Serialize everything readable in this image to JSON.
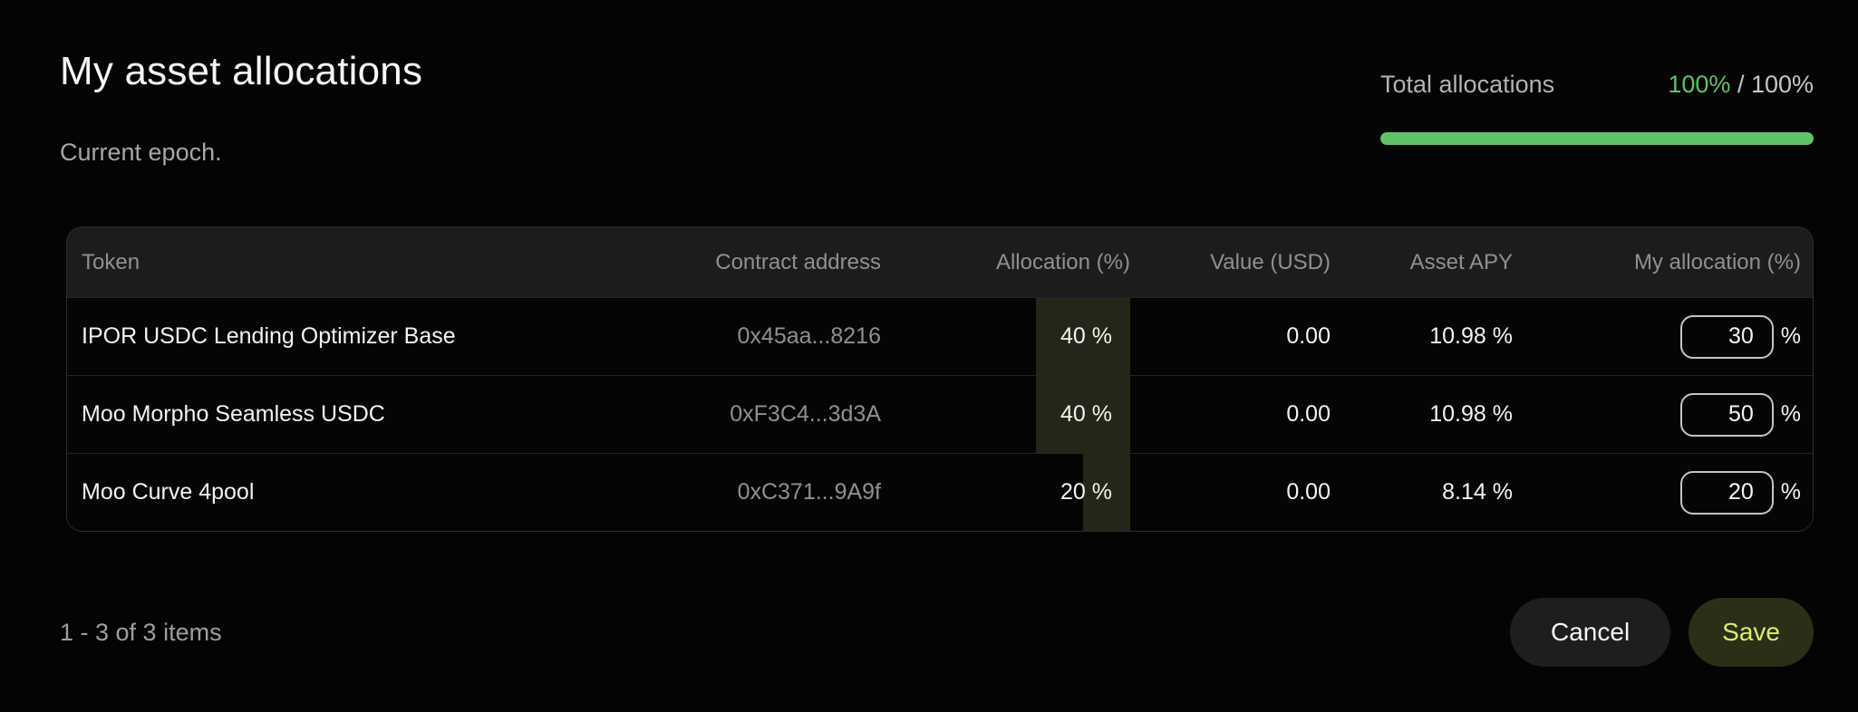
{
  "page": {
    "title": "My asset allocations",
    "subtitle": "Current epoch."
  },
  "totals": {
    "label": "Total allocations",
    "current": "100%",
    "rest": "/ 100%",
    "progress_percent": 100
  },
  "table": {
    "columns": {
      "token": "Token",
      "contract": "Contract address",
      "allocation": "Allocation (%)",
      "value": "Value (USD)",
      "apy": "Asset APY",
      "my_allocation": "My allocation (%)"
    },
    "rows": [
      {
        "token": "IPOR USDC Lending Optimizer Base",
        "contract": "0x45aa...8216",
        "allocation": "40 %",
        "allocation_pct": 40,
        "value": "0.00",
        "apy": "10.98 %",
        "my_allocation": "30",
        "unit": "%"
      },
      {
        "token": "Moo Morpho Seamless USDC",
        "contract": "0xF3C4...3d3A",
        "allocation": "40 %",
        "allocation_pct": 40,
        "value": "0.00",
        "apy": "10.98 %",
        "my_allocation": "50",
        "unit": "%"
      },
      {
        "token": "Moo Curve 4pool",
        "contract": "0xC371...9A9f",
        "allocation": "20 %",
        "allocation_pct": 20,
        "value": "0.00",
        "apy": "8.14 %",
        "my_allocation": "20",
        "unit": "%"
      }
    ]
  },
  "footer": {
    "pagination": "1 - 3 of 3 items",
    "cancel_label": "Cancel",
    "save_label": "Save"
  },
  "colors": {
    "accent_green": "#5ec269",
    "allocation_bar_olive": "#232718",
    "save_button_bg": "#2b2f17",
    "save_button_text": "#dcec73",
    "page_bg": "#040404",
    "table_header_bg": "#1c1c1c"
  }
}
